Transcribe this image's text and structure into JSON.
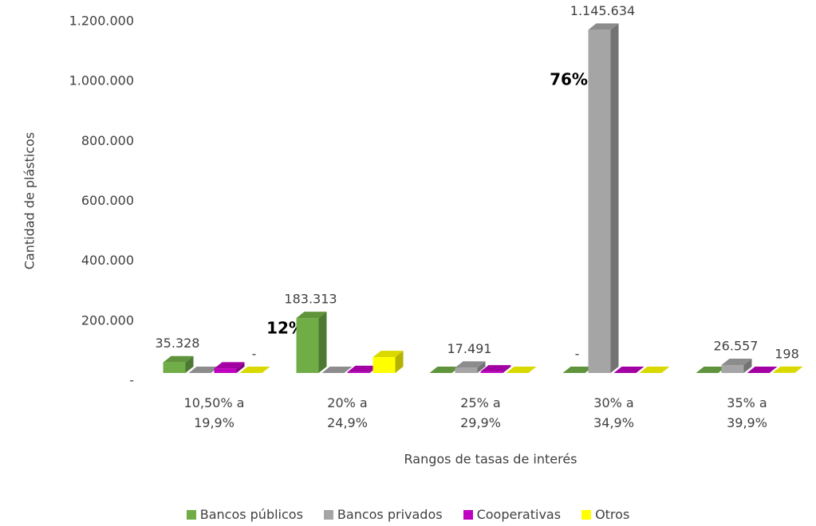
{
  "chart_data": {
    "type": "bar3d",
    "xlabel": "Rangos de tasas de interés",
    "ylabel": "Cantidad de plásticos",
    "categories": [
      "10,50% a 19,9%",
      "20% a 24,9%",
      "25% a 29,9%",
      "30% a 34,9%",
      "35% a 39,9%"
    ],
    "series": [
      {
        "name": "Bancos públicos",
        "color": "#70ad47",
        "values": [
          35328,
          183313,
          0,
          0,
          0
        ],
        "value_labels": [
          "35.328",
          "183.313",
          null,
          "-",
          null
        ]
      },
      {
        "name": "Bancos privados",
        "color": "#a5a5a5",
        "values": [
          0,
          0,
          17491,
          1145634,
          26557
        ],
        "value_labels": [
          null,
          null,
          "17.491",
          "1.145.634",
          "26.557"
        ]
      },
      {
        "name": "Cooperativas",
        "color": "#c000c0",
        "values": [
          15000,
          3000,
          5000,
          0,
          0
        ],
        "value_labels": [
          null,
          null,
          null,
          null,
          null
        ]
      },
      {
        "name": "Otros",
        "color": "#ffff00",
        "values": [
          0,
          53000,
          0,
          0,
          198
        ],
        "value_labels": [
          "-",
          null,
          null,
          null,
          "198"
        ]
      }
    ],
    "ylim": [
      0,
      1200000
    ],
    "yticks": [
      {
        "value": 0,
        "label": "-"
      },
      {
        "value": 200000,
        "label": "200.000"
      },
      {
        "value": 400000,
        "label": "400.000"
      },
      {
        "value": 600000,
        "label": "600.000"
      },
      {
        "value": 800000,
        "label": "800.000"
      },
      {
        "value": 1000000,
        "label": "1.000.000"
      },
      {
        "value": 1200000,
        "label": "1.200.000"
      }
    ],
    "annotations": [
      "12%",
      "76%"
    ],
    "legend": "bottom"
  }
}
